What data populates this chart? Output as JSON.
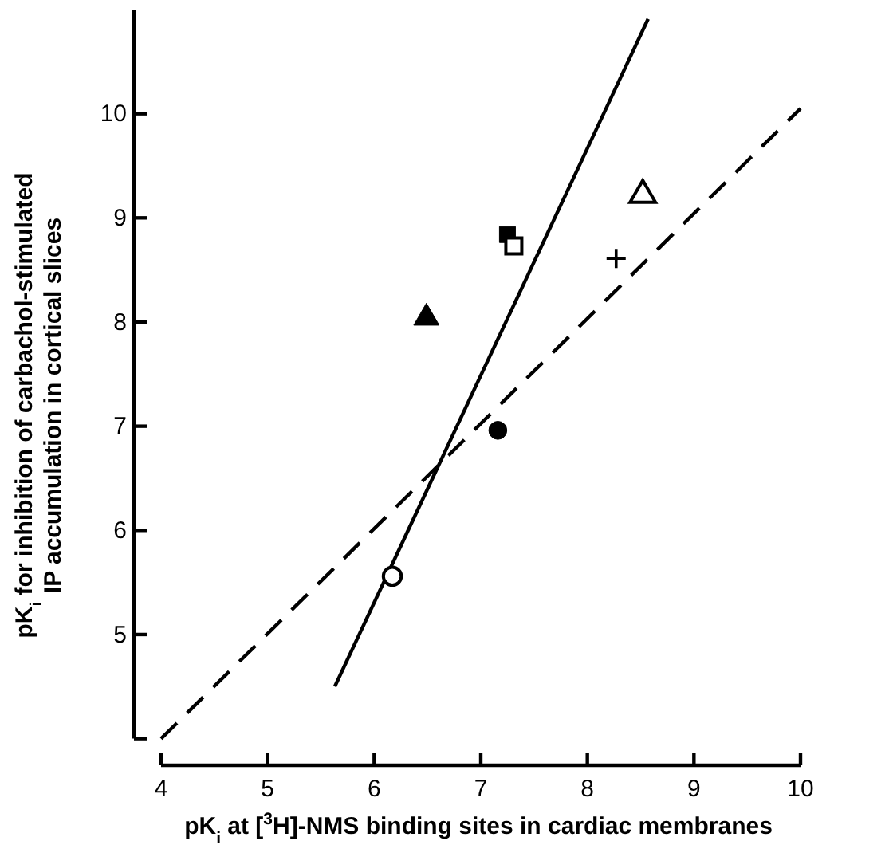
{
  "chart_data": {
    "type": "scatter",
    "xlabel": "pK$_{i}$ at [$^{3}$H]-NMS binding sites in cardiac membranes",
    "ylabel": "pK$_{i}$ for inhibition of carbachol-stimulated\nIP accumulation in cortical slices",
    "xlim": [
      4,
      10
    ],
    "xticks": [
      4,
      5,
      6,
      7,
      8,
      9,
      10
    ],
    "ylim": [
      4,
      11
    ],
    "yticks": [
      {
        "value": 4,
        "label": null
      },
      5,
      6,
      7,
      8,
      9,
      10
    ],
    "grid": false,
    "series": [
      {
        "type": "line",
        "x": [
          5.63,
          8.57
        ],
        "values": [
          4.5,
          10.91
        ],
        "color": "#000000",
        "line_style": "solid",
        "marker": "none"
      },
      {
        "type": "line",
        "x": [
          4,
          10
        ],
        "values": [
          4,
          10.05
        ],
        "color": "#000000",
        "line_style": "dashed",
        "marker": "none"
      },
      {
        "x": [
          7.25
        ],
        "values": [
          8.84
        ],
        "color": "#000000",
        "marker": "square"
      },
      {
        "x": [
          7.31
        ],
        "values": [
          8.73
        ],
        "color": "#ffffff",
        "marker": "square"
      },
      {
        "x": [
          6.49
        ],
        "values": [
          8.04
        ],
        "color": "#000000",
        "marker": "triangle"
      },
      {
        "x": [
          8.52
        ],
        "values": [
          9.22
        ],
        "color": "#ffffff",
        "marker": "triangle"
      },
      {
        "x": [
          8.27
        ],
        "values": [
          8.61
        ],
        "color": "#000000",
        "marker": "cross"
      },
      {
        "x": [
          7.16
        ],
        "values": [
          6.96
        ],
        "color": "#000000",
        "marker": "circle"
      },
      {
        "x": [
          6.17
        ],
        "values": [
          5.56
        ],
        "color": "#ffffff",
        "marker": "circle"
      }
    ]
  }
}
